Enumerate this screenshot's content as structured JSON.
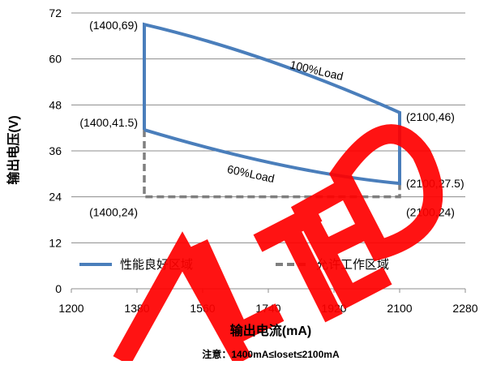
{
  "chart_data": {
    "type": "line",
    "xlabel": "输出电流(mA)",
    "ylabel": "输出电压(V)",
    "xlim": [
      1200,
      2280
    ],
    "ylim": [
      0,
      72
    ],
    "x_ticks": [
      "1200",
      "1380",
      "1560",
      "1740",
      "1920",
      "2100",
      "2280"
    ],
    "y_ticks": [
      "0",
      "12",
      "24",
      "36",
      "48",
      "60",
      "72"
    ],
    "grid": {
      "horizontal": true,
      "vertical": false
    },
    "note": "注意：1400mA≤Ioset≤2100mA",
    "curves": [
      {
        "label": "100%Load",
        "from": [
          1400,
          69
        ],
        "to": [
          2100,
          46
        ],
        "label_at": [
          1870,
          56
        ],
        "label_rotate": 13
      },
      {
        "label": "60%Load",
        "from": [
          1400,
          41.5
        ],
        "to": [
          2100,
          27.5
        ],
        "label_at": [
          1690,
          29
        ],
        "label_rotate": 12
      }
    ],
    "point_labels": [
      {
        "text": "(1400,69)",
        "x": 1400,
        "y": 69,
        "anchor": "end",
        "dx": -8,
        "dy": 6
      },
      {
        "text": "(1400,41.5)",
        "x": 1400,
        "y": 41.5,
        "anchor": "end",
        "dx": -8,
        "dy": -4
      },
      {
        "text": "(1400,24)",
        "x": 1400,
        "y": 24,
        "anchor": "end",
        "dx": -8,
        "dy": 24
      },
      {
        "text": "(2100,46)",
        "x": 2100,
        "y": 46,
        "anchor": "start",
        "dx": 8,
        "dy": 10
      },
      {
        "text": "(2100,27.5)",
        "x": 2100,
        "y": 27.5,
        "anchor": "start",
        "dx": 8,
        "dy": 5
      },
      {
        "text": "(2100,24)",
        "x": 2100,
        "y": 24,
        "anchor": "start",
        "dx": 8,
        "dy": 24
      }
    ],
    "series": [
      {
        "name": "性能良好区域",
        "style": "solid",
        "color": "#4a7ebb",
        "points": [
          [
            1400,
            41.5
          ],
          [
            1400,
            69
          ],
          [
            2100,
            46
          ],
          [
            2100,
            27.5
          ],
          [
            1400,
            41.5
          ]
        ]
      },
      {
        "name": "允许工作区域",
        "style": "dashed",
        "color": "#7f7f7f",
        "points": [
          [
            1400,
            41.5
          ],
          [
            1400,
            24
          ],
          [
            2100,
            24
          ],
          [
            2100,
            27.5
          ]
        ]
      }
    ],
    "legend": {
      "placement": "bottom-inside"
    },
    "watermark": {
      "text": "ALTE",
      "color": "#ff0000"
    }
  }
}
